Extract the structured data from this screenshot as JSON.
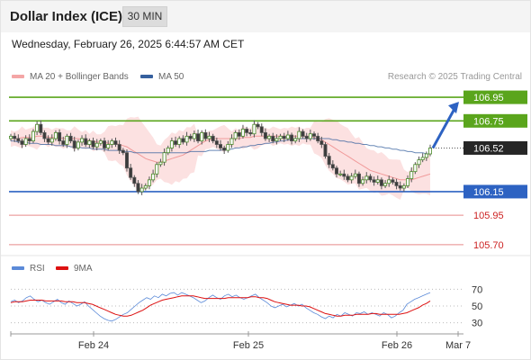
{
  "header": {
    "title": "Dollar Index (ICE)",
    "timeframe": "30 MIN",
    "date": "Wednesday, February 26, 2025 6:44:57 AM CET"
  },
  "legend": {
    "items": [
      {
        "label": "MA 20 + Bollinger Bands",
        "color": "#f4a6a6"
      },
      {
        "label": "MA 50",
        "color": "#36609e"
      }
    ],
    "credit": "Research © 2025 Trading Central"
  },
  "rsi_legend": {
    "items": [
      {
        "label": "RSI",
        "color": "#5b8ad8"
      },
      {
        "label": "9MA",
        "color": "#dd1111"
      }
    ]
  },
  "chart_data": [
    {
      "type": "candlestick",
      "title": "Dollar Index (ICE)",
      "ylim": [
        105.6,
        107.05
      ],
      "x_ticks": [
        "Feb 24",
        "Feb 25",
        "Feb 26",
        "Mar 7"
      ],
      "current_price": 106.52,
      "levels": [
        {
          "value": 106.95,
          "label": "106.95",
          "color": "#5aa51c",
          "kind": "resistance"
        },
        {
          "value": 106.75,
          "label": "106.75",
          "color": "#5aa51c",
          "kind": "resistance"
        },
        {
          "value": 106.15,
          "label": "106.15",
          "color": "#2d62c2",
          "kind": "pivot"
        },
        {
          "value": 105.95,
          "label": "105.95",
          "color": "#e88a8a",
          "kind": "support"
        },
        {
          "value": 105.7,
          "label": "105.70",
          "color": "#e88a8a",
          "kind": "support"
        }
      ],
      "closes": [
        106.62,
        106.6,
        106.58,
        106.55,
        106.6,
        106.58,
        106.66,
        106.72,
        106.65,
        106.6,
        106.57,
        106.6,
        106.65,
        106.58,
        106.55,
        106.62,
        106.58,
        106.52,
        106.57,
        106.6,
        106.55,
        106.58,
        106.53,
        106.56,
        106.58,
        106.52,
        106.55,
        106.58,
        106.55,
        106.5,
        106.48,
        106.35,
        106.27,
        106.22,
        106.15,
        106.18,
        106.2,
        106.25,
        106.3,
        106.38,
        106.4,
        106.48,
        106.52,
        106.58,
        106.55,
        106.6,
        106.57,
        106.62,
        106.6,
        106.64,
        106.58,
        106.65,
        106.6,
        106.62,
        106.58,
        106.55,
        106.52,
        106.5,
        106.55,
        106.6,
        106.65,
        106.62,
        106.68,
        106.65,
        106.64,
        106.72,
        106.7,
        106.65,
        106.6,
        106.62,
        106.58,
        106.6,
        106.62,
        106.6,
        106.63,
        106.58,
        106.6,
        106.66,
        106.62,
        106.6,
        106.64,
        106.62,
        106.58,
        106.55,
        106.45,
        106.38,
        106.35,
        106.3,
        106.3,
        106.28,
        106.25,
        106.28,
        106.3,
        106.22,
        106.25,
        106.28,
        106.25,
        106.23,
        106.25,
        106.2,
        106.22,
        106.25,
        106.23,
        106.2,
        106.18,
        106.2,
        106.26,
        106.32,
        106.38,
        106.42,
        106.44,
        106.47,
        106.52
      ],
      "ma20": [
        106.6,
        106.6,
        106.6,
        106.61,
        106.61,
        106.61,
        106.61,
        106.62,
        106.62,
        106.62,
        106.61,
        106.61,
        106.61,
        106.61,
        106.6,
        106.6,
        106.6,
        106.6,
        106.6,
        106.59,
        106.59,
        106.58,
        106.58,
        106.57,
        106.57,
        106.57,
        106.56,
        106.56,
        106.56,
        106.55,
        106.54,
        106.53,
        106.51,
        106.49,
        106.47,
        106.45,
        106.43,
        106.42,
        106.41,
        106.4,
        106.4,
        106.41,
        106.42,
        106.43,
        106.44,
        106.45,
        106.46,
        106.48,
        106.5,
        106.52,
        106.54,
        106.56,
        106.58,
        106.59,
        106.6,
        106.6,
        106.6,
        106.6,
        106.6,
        106.6,
        106.6,
        106.6,
        106.61,
        106.61,
        106.61,
        106.62,
        106.62,
        106.62,
        106.62,
        106.62,
        106.62,
        106.62,
        106.62,
        106.62,
        106.62,
        106.62,
        106.62,
        106.62,
        106.62,
        106.62,
        106.62,
        106.61,
        106.6,
        106.59,
        106.57,
        106.55,
        106.53,
        106.51,
        106.49,
        106.47,
        106.45,
        106.43,
        106.41,
        106.39,
        106.37,
        106.35,
        106.33,
        106.32,
        106.31,
        106.3,
        106.29,
        106.28,
        106.27,
        106.26,
        106.25,
        106.25,
        106.25,
        106.25,
        106.26,
        106.27,
        106.28,
        106.29,
        106.3
      ],
      "ma50": [
        106.58,
        106.58,
        106.57,
        106.57,
        106.57,
        106.56,
        106.56,
        106.56,
        106.55,
        106.55,
        106.55,
        106.55,
        106.54,
        106.54,
        106.54,
        106.54,
        106.53,
        106.53,
        106.53,
        106.52,
        106.52,
        106.52,
        106.51,
        106.51,
        106.51,
        106.51,
        106.5,
        106.5,
        106.5,
        106.5,
        106.49,
        106.49,
        106.49,
        106.48,
        106.48,
        106.48,
        106.48,
        106.48,
        106.48,
        106.48,
        106.48,
        106.48,
        106.48,
        106.48,
        106.48,
        106.48,
        106.48,
        106.48,
        106.49,
        106.49,
        106.49,
        106.49,
        106.49,
        106.5,
        106.5,
        106.5,
        106.5,
        106.51,
        106.51,
        106.51,
        106.52,
        106.52,
        106.53,
        106.53,
        106.54,
        106.54,
        106.55,
        106.55,
        106.56,
        106.56,
        106.57,
        106.57,
        106.58,
        106.58,
        106.59,
        106.59,
        106.6,
        106.6,
        106.6,
        106.6,
        106.6,
        106.6,
        106.6,
        106.6,
        106.6,
        106.6,
        106.59,
        106.59,
        106.58,
        106.58,
        106.57,
        106.57,
        106.56,
        106.56,
        106.55,
        106.55,
        106.54,
        106.54,
        106.53,
        106.53,
        106.52,
        106.52,
        106.51,
        106.51,
        106.5,
        106.5,
        106.49,
        106.49,
        106.48,
        106.48,
        106.48,
        106.47,
        106.47
      ],
      "projection": {
        "from": 106.52,
        "to": 106.95
      }
    },
    {
      "type": "line",
      "title": "RSI",
      "ylim": [
        20,
        80
      ],
      "y_ticks": [
        30,
        50,
        70
      ],
      "series": [
        {
          "name": "RSI",
          "color": "#5b8ad8",
          "values": [
            55,
            57,
            54,
            56,
            60,
            62,
            58,
            55,
            57,
            54,
            52,
            55,
            58,
            54,
            52,
            56,
            53,
            50,
            52,
            55,
            50,
            46,
            42,
            38,
            35,
            33,
            32,
            34,
            37,
            40,
            42,
            46,
            50,
            54,
            57,
            60,
            58,
            62,
            60,
            64,
            62,
            65,
            66,
            63,
            66,
            64,
            62,
            60,
            57,
            54,
            56,
            60,
            63,
            60,
            58,
            62,
            64,
            61,
            63,
            60,
            58,
            60,
            62,
            64,
            60,
            57,
            54,
            50,
            48,
            50,
            52,
            49,
            51,
            53,
            50,
            52,
            48,
            45,
            42,
            40,
            37,
            35,
            38,
            36,
            40,
            38,
            42,
            40,
            38,
            42,
            41,
            43,
            40,
            42,
            40,
            38,
            42,
            40,
            36,
            38,
            42,
            45,
            52,
            55,
            58,
            60,
            62,
            64,
            66
          ]
        },
        {
          "name": "9MA",
          "color": "#dd1111",
          "values": [
            54,
            55,
            55,
            55,
            56,
            57,
            57,
            57,
            57,
            56,
            56,
            56,
            56,
            56,
            55,
            55,
            55,
            54,
            54,
            54,
            53,
            52,
            50,
            48,
            46,
            44,
            42,
            40,
            39,
            38,
            38,
            39,
            41,
            43,
            45,
            48,
            51,
            53,
            55,
            57,
            58,
            59,
            60,
            61,
            62,
            62,
            62,
            62,
            61,
            60,
            59,
            59,
            59,
            59,
            59,
            59,
            60,
            60,
            60,
            60,
            60,
            60,
            61,
            61,
            60,
            60,
            59,
            57,
            55,
            54,
            53,
            52,
            51,
            51,
            51,
            50,
            50,
            49,
            47,
            45,
            43,
            41,
            40,
            39,
            38,
            38,
            39,
            39,
            39,
            40,
            40,
            40,
            40,
            41,
            41,
            40,
            40,
            40,
            40,
            40,
            40,
            41,
            42,
            44,
            46,
            48,
            51,
            53,
            56
          ]
        }
      ]
    }
  ]
}
